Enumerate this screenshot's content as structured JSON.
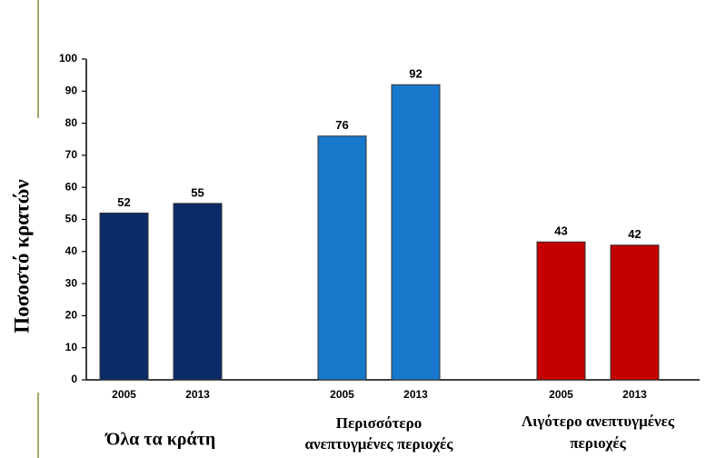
{
  "chart_data": {
    "type": "grouped_bar",
    "y_label": "Ποσοστό κρατών",
    "ylim": [
      0,
      100
    ],
    "yticks": [
      0,
      10,
      20,
      30,
      40,
      50,
      60,
      70,
      80,
      90,
      100
    ],
    "groups": [
      {
        "label": [
          "Όλα τα κράτη"
        ],
        "color": "#0b2a68",
        "categories": [
          "2005",
          "2013"
        ],
        "values": [
          52,
          55
        ]
      },
      {
        "label": [
          "Περισσότερο",
          "ανεπτυγμένες περιοχές"
        ],
        "color": "#1878cc",
        "categories": [
          "2005",
          "2013"
        ],
        "values": [
          76,
          92
        ]
      },
      {
        "label": [
          "Λιγότερο ανεπτυγμένες",
          "περιοχές"
        ],
        "color": "#c40000",
        "categories": [
          "2005",
          "2013"
        ],
        "values": [
          43,
          42
        ]
      }
    ]
  }
}
